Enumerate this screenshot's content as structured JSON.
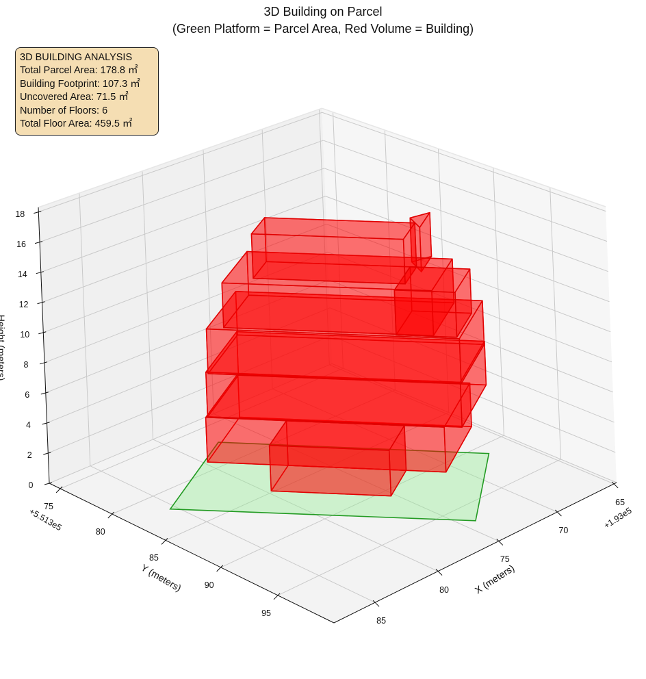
{
  "title": {
    "line1": "3D Building on Parcel",
    "line2": "(Green Platform = Parcel Area, Red Volume = Building)"
  },
  "annotation": {
    "title": "3D BUILDING ANALYSIS",
    "lines": [
      "Total Parcel Area: 178.8 ㎡",
      "Building Footprint: 107.3 ㎡",
      "Uncovered Area: 71.5 ㎡",
      "Number of Floors: 6",
      "Total Floor Area: 459.5 ㎡"
    ]
  },
  "chart_data": {
    "type": "3d-polygons",
    "xlabel": "X (meters)",
    "ylabel": "Y (meters)",
    "zlabel": "Height (meters)",
    "x_offset_text": "+1.93e5",
    "y_offset_text": "+5.513e5",
    "xlim": [
      64.76,
      88.17
    ],
    "ylim": [
      73.92,
      99.76
    ],
    "zlim": [
      0,
      18.3
    ],
    "x_ticks": [
      65,
      70,
      75,
      80,
      85
    ],
    "y_ticks": [
      75,
      80,
      85,
      90,
      95
    ],
    "z_ticks": [
      0,
      2,
      4,
      6,
      8,
      10,
      12,
      14,
      16,
      18
    ],
    "grid": true,
    "colors": {
      "parcel_fill": "rgba(144,238,144,0.38)",
      "parcel_edge": "#239b23",
      "building_fill": "rgba(255,0,0,0.33)",
      "building_edge": "#e00000",
      "pane_left": "#f0f0f0",
      "pane_right": "#f6f6f6",
      "pane_floor": "#f3f3f3",
      "grid": "#c9c9c9"
    },
    "parcel": {
      "z": 0,
      "polygon": [
        [
          85.4,
          82.1
        ],
        [
          77.5,
          77.3
        ],
        [
          67.2,
          91.1
        ],
        [
          74.1,
          96.9
        ]
      ]
    },
    "building_volumes": [
      {
        "z": [
          0,
          3
        ],
        "polygon": [
          [
            74.22,
            75.54
          ],
          [
            65.24,
            87.57
          ],
          [
            70.79,
            90.95
          ],
          [
            79.77,
            78.92
          ]
        ]
      },
      {
        "z": [
          0,
          3
        ],
        "polygon": [
          [
            76.72,
            83.01
          ],
          [
            72.28,
            88.95
          ],
          [
            75.28,
            90.77
          ],
          [
            79.72,
            84.83
          ]
        ]
      },
      {
        "z": [
          3,
          6
        ],
        "polygon": [
          [
            74.33,
            75.72
          ],
          [
            64.75,
            88.55
          ],
          [
            70.05,
            91.77
          ],
          [
            79.63,
            78.94
          ]
        ]
      },
      {
        "z": [
          6,
          9
        ],
        "polygon": [
          [
            74.63,
            76.14
          ],
          [
            65.11,
            88.89
          ],
          [
            70.16,
            91.96
          ],
          [
            79.68,
            79.21
          ]
        ]
      },
      {
        "z": [
          9,
          12
        ],
        "polygon": [
          [
            74.46,
            77.2
          ],
          [
            66.55,
            87.79
          ],
          [
            70.91,
            90.44
          ],
          [
            78.82,
            79.85
          ]
        ]
      },
      {
        "z": [
          9,
          12
        ],
        "polygon": [
          [
            69.21,
            86.72
          ],
          [
            66.94,
            89.77
          ],
          [
            70.11,
            91.69
          ],
          [
            72.38,
            88.64
          ]
        ]
      },
      {
        "z": [
          12,
          15
        ],
        "polygon": [
          [
            74.72,
            79.35
          ],
          [
            68.97,
            87.05
          ],
          [
            71.28,
            88.45
          ],
          [
            77.03,
            80.75
          ]
        ]
      },
      {
        "z": [
          12,
          15
        ],
        "polygon": [
          [
            68.59,
            86.22
          ],
          [
            67.14,
            86.51
          ],
          [
            69.27,
            87.81
          ]
        ]
      }
    ]
  }
}
